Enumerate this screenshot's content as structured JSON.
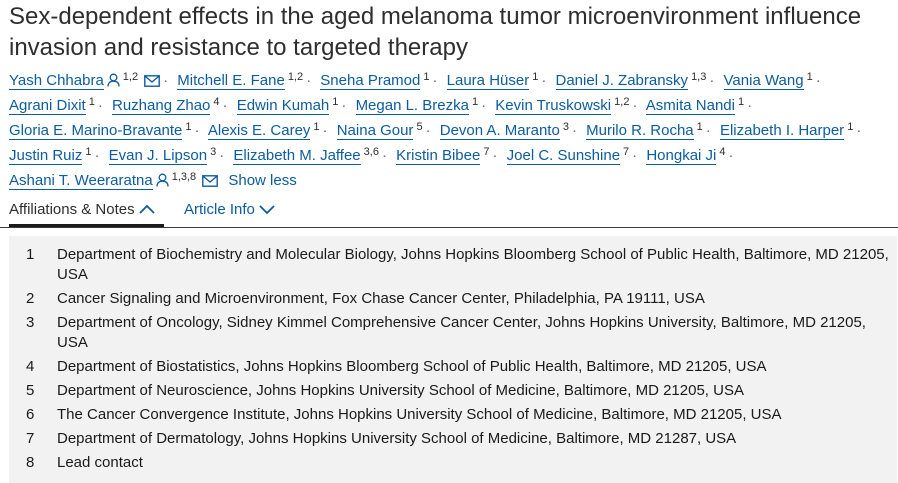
{
  "article": {
    "title": "Sex-dependent effects in the aged melanoma tumor microenvironment influence invasion and resistance to targeted therapy"
  },
  "authors": [
    {
      "name": "Yash Chhabra",
      "sup": "1,2",
      "person_icon": true,
      "mail_icon": true
    },
    {
      "name": "Mitchell E. Fane",
      "sup": "1,2"
    },
    {
      "name": "Sneha Pramod",
      "sup": "1"
    },
    {
      "name": "Laura Hüser",
      "sup": "1"
    },
    {
      "name": "Daniel J. Zabransky",
      "sup": "1,3"
    },
    {
      "name": "Vania Wang",
      "sup": "1"
    },
    {
      "name": "Agrani Dixit",
      "sup": "1"
    },
    {
      "name": "Ruzhang Zhao",
      "sup": "4"
    },
    {
      "name": "Edwin Kumah",
      "sup": "1"
    },
    {
      "name": "Megan L. Brezka",
      "sup": "1"
    },
    {
      "name": "Kevin Truskowski",
      "sup": "1,2"
    },
    {
      "name": "Asmita Nandi",
      "sup": "1"
    },
    {
      "name": "Gloria E. Marino-Bravante",
      "sup": "1"
    },
    {
      "name": "Alexis E. Carey",
      "sup": "1"
    },
    {
      "name": "Naina Gour",
      "sup": "5"
    },
    {
      "name": "Devon A. Maranto",
      "sup": "3"
    },
    {
      "name": "Murilo R. Rocha",
      "sup": "1"
    },
    {
      "name": "Elizabeth I. Harper",
      "sup": "1"
    },
    {
      "name": "Justin Ruiz",
      "sup": "1"
    },
    {
      "name": "Evan J. Lipson",
      "sup": "3"
    },
    {
      "name": "Elizabeth M. Jaffee",
      "sup": "3,6"
    },
    {
      "name": "Kristin Bibee",
      "sup": "7"
    },
    {
      "name": "Joel C. Sunshine",
      "sup": "7"
    },
    {
      "name": "Hongkai Ji",
      "sup": "4"
    },
    {
      "name": "Ashani T. Weeraratna",
      "sup": "1,3,8",
      "person_icon": true,
      "mail_icon": true
    }
  ],
  "show_less_label": "Show less",
  "tabs": {
    "affiliations_label": "Affiliations & Notes",
    "article_info_label": "Article Info"
  },
  "affiliations": [
    {
      "num": "1",
      "text": "Department of Biochemistry and Molecular Biology, Johns Hopkins Bloomberg School of Public Health, Baltimore, MD 21205, USA"
    },
    {
      "num": "2",
      "text": "Cancer Signaling and Microenvironment, Fox Chase Cancer Center, Philadelphia, PA 19111, USA"
    },
    {
      "num": "3",
      "text": "Department of Oncology, Sidney Kimmel Comprehensive Cancer Center, Johns Hopkins University, Baltimore, MD 21205, USA"
    },
    {
      "num": "4",
      "text": "Department of Biostatistics, Johns Hopkins Bloomberg School of Public Health, Baltimore, MD 21205, USA"
    },
    {
      "num": "5",
      "text": "Department of Neuroscience, Johns Hopkins University School of Medicine, Baltimore, MD 21205, USA"
    },
    {
      "num": "6",
      "text": "The Cancer Convergence Institute, Johns Hopkins University School of Medicine, Baltimore, MD 21205, USA"
    },
    {
      "num": "7",
      "text": "Department of Dermatology, Johns Hopkins University School of Medicine, Baltimore, MD 21287, USA"
    },
    {
      "num": "8",
      "text": "Lead contact"
    }
  ],
  "colors": {
    "link": "#0c5ca0",
    "panel_background": "#f2f2f2"
  }
}
